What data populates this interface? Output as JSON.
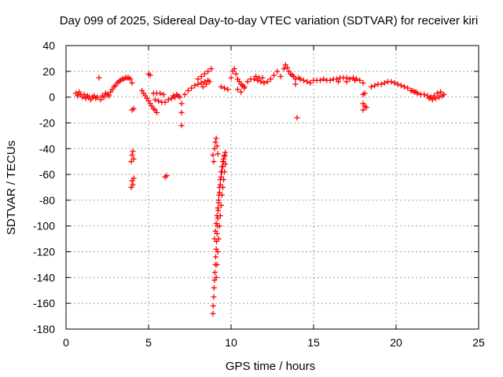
{
  "chart_data": {
    "type": "scatter",
    "title": "Day 099 of 2025, Sidereal Day-to-day VTEC variation (SDTVAR) for receiver kiri",
    "xlabel": "GPS time / hours",
    "ylabel": "SDTVAR / TECUs",
    "xlim": [
      0,
      25
    ],
    "ylim": [
      -180,
      40
    ],
    "xticks": [
      0,
      5,
      10,
      15,
      20,
      25
    ],
    "yticks": [
      -180,
      -160,
      -140,
      -120,
      -100,
      -80,
      -60,
      -40,
      -20,
      0,
      20,
      40
    ],
    "grid": true,
    "marker": "+",
    "color": "#ff0000",
    "series": [
      {
        "points": [
          [
            0.6,
            3
          ],
          [
            0.7,
            1
          ],
          [
            0.8,
            4
          ],
          [
            0.9,
            2
          ],
          [
            1.0,
            0
          ],
          [
            1.1,
            2
          ],
          [
            1.2,
            -1
          ],
          [
            1.3,
            1
          ],
          [
            1.4,
            0
          ],
          [
            1.5,
            -2
          ],
          [
            1.6,
            0
          ],
          [
            1.7,
            1
          ],
          [
            1.8,
            -1
          ],
          [
            1.9,
            0
          ],
          [
            2.0,
            15
          ],
          [
            2.1,
            -2
          ],
          [
            2.2,
            1
          ],
          [
            2.3,
            0
          ],
          [
            2.4,
            3
          ],
          [
            2.5,
            2
          ],
          [
            2.6,
            1
          ],
          [
            2.7,
            4
          ],
          [
            2.8,
            6
          ],
          [
            2.9,
            8
          ],
          [
            3.0,
            9
          ],
          [
            3.1,
            11
          ],
          [
            3.2,
            12
          ],
          [
            3.3,
            13
          ],
          [
            3.4,
            14
          ],
          [
            3.5,
            14
          ],
          [
            3.6,
            15
          ],
          [
            3.7,
            15
          ],
          [
            3.8,
            15
          ],
          [
            3.9,
            14
          ],
          [
            4.0,
            11
          ],
          [
            4.0,
            -10
          ],
          [
            4.1,
            -9
          ],
          [
            4.0,
            -45
          ],
          [
            3.95,
            -50
          ],
          [
            4.05,
            -42
          ],
          [
            4.1,
            -48
          ],
          [
            4.0,
            -65
          ],
          [
            3.95,
            -70
          ],
          [
            4.05,
            -68
          ],
          [
            4.1,
            -63
          ],
          [
            4.6,
            5
          ],
          [
            4.7,
            3
          ],
          [
            4.8,
            1
          ],
          [
            4.9,
            -1
          ],
          [
            5.0,
            -3
          ],
          [
            5.1,
            -5
          ],
          [
            5.2,
            -7
          ],
          [
            5.3,
            -9
          ],
          [
            5.4,
            -10
          ],
          [
            5.5,
            -12
          ],
          [
            5.0,
            18
          ],
          [
            5.1,
            17
          ],
          [
            5.3,
            3
          ],
          [
            5.5,
            3
          ],
          [
            5.7,
            3
          ],
          [
            5.9,
            2
          ],
          [
            5.4,
            -2
          ],
          [
            5.6,
            -3
          ],
          [
            5.8,
            -4
          ],
          [
            6.0,
            -4
          ],
          [
            6.2,
            -2
          ],
          [
            6.4,
            -1
          ],
          [
            6.6,
            0
          ],
          [
            6.8,
            1
          ],
          [
            6.0,
            -62
          ],
          [
            6.1,
            -61
          ],
          [
            6.5,
            1
          ],
          [
            6.7,
            2
          ],
          [
            6.9,
            0
          ],
          [
            7.0,
            -5
          ],
          [
            7.0,
            -12
          ],
          [
            7.0,
            -22
          ],
          [
            7.2,
            2
          ],
          [
            7.4,
            5
          ],
          [
            7.6,
            7
          ],
          [
            7.8,
            9
          ],
          [
            8.0,
            10
          ],
          [
            8.2,
            11
          ],
          [
            8.4,
            12
          ],
          [
            8.6,
            13
          ],
          [
            8.0,
            14
          ],
          [
            8.2,
            16
          ],
          [
            8.4,
            18
          ],
          [
            8.6,
            20
          ],
          [
            8.8,
            22
          ],
          [
            8.3,
            8
          ],
          [
            8.5,
            10
          ],
          [
            8.7,
            12
          ],
          [
            8.9,
            -45
          ],
          [
            8.95,
            -50
          ],
          [
            9.0,
            -40
          ],
          [
            9.05,
            -35
          ],
          [
            9.1,
            -32
          ],
          [
            9.15,
            -38
          ],
          [
            9.2,
            -44
          ],
          [
            8.9,
            -168
          ],
          [
            8.92,
            -162
          ],
          [
            8.95,
            -155
          ],
          [
            8.97,
            -148
          ],
          [
            9.0,
            -142
          ],
          [
            9.02,
            -136
          ],
          [
            9.05,
            -130
          ],
          [
            9.07,
            -124
          ],
          [
            9.1,
            -118
          ],
          [
            9.12,
            -112
          ],
          [
            9.15,
            -106
          ],
          [
            9.17,
            -100
          ],
          [
            9.2,
            -94
          ],
          [
            9.22,
            -88
          ],
          [
            9.25,
            -82
          ],
          [
            9.27,
            -76
          ],
          [
            9.3,
            -70
          ],
          [
            9.35,
            -64
          ],
          [
            9.4,
            -58
          ],
          [
            9.45,
            -54
          ],
          [
            9.5,
            -50
          ],
          [
            9.55,
            -48
          ],
          [
            9.6,
            -45
          ],
          [
            9.0,
            -110
          ],
          [
            9.05,
            -104
          ],
          [
            9.1,
            -98
          ],
          [
            9.15,
            -92
          ],
          [
            9.2,
            -86
          ],
          [
            9.25,
            -80
          ],
          [
            9.3,
            -74
          ],
          [
            9.35,
            -68
          ],
          [
            9.4,
            -62
          ],
          [
            9.45,
            -58
          ],
          [
            9.5,
            -54
          ],
          [
            9.55,
            -50
          ],
          [
            9.6,
            -46
          ],
          [
            9.65,
            -43
          ],
          [
            9.1,
            -140
          ],
          [
            9.15,
            -130
          ],
          [
            9.2,
            -120
          ],
          [
            9.25,
            -110
          ],
          [
            9.3,
            -100
          ],
          [
            9.35,
            -92
          ],
          [
            9.4,
            -84
          ],
          [
            9.45,
            -76
          ],
          [
            9.5,
            -70
          ],
          [
            9.55,
            -64
          ],
          [
            9.6,
            -58
          ],
          [
            9.65,
            -52
          ],
          [
            9.4,
            8
          ],
          [
            9.6,
            7
          ],
          [
            9.8,
            6
          ],
          [
            10.0,
            15
          ],
          [
            10.1,
            20
          ],
          [
            10.2,
            22
          ],
          [
            10.3,
            18
          ],
          [
            10.4,
            14
          ],
          [
            10.5,
            12
          ],
          [
            10.6,
            10
          ],
          [
            10.7,
            9
          ],
          [
            10.8,
            7
          ],
          [
            10.4,
            6
          ],
          [
            10.6,
            4
          ],
          [
            10.8,
            8
          ],
          [
            11.0,
            12
          ],
          [
            11.2,
            14
          ],
          [
            11.4,
            14
          ],
          [
            11.6,
            13
          ],
          [
            11.8,
            12
          ],
          [
            12.0,
            11
          ],
          [
            12.2,
            12
          ],
          [
            12.4,
            14
          ],
          [
            12.6,
            17
          ],
          [
            12.8,
            20
          ],
          [
            13.0,
            16
          ],
          [
            11.5,
            16
          ],
          [
            11.7,
            15
          ],
          [
            11.9,
            15
          ],
          [
            13.2,
            22
          ],
          [
            13.3,
            25
          ],
          [
            13.4,
            23
          ],
          [
            13.5,
            20
          ],
          [
            13.6,
            18
          ],
          [
            13.7,
            17
          ],
          [
            13.8,
            16
          ],
          [
            13.9,
            14
          ],
          [
            14.0,
            -16
          ],
          [
            14.1,
            15
          ],
          [
            14.2,
            14
          ],
          [
            14.4,
            13
          ],
          [
            14.6,
            12
          ],
          [
            14.8,
            11
          ],
          [
            13.9,
            10
          ],
          [
            15.0,
            13
          ],
          [
            15.2,
            13
          ],
          [
            15.4,
            13
          ],
          [
            15.6,
            14
          ],
          [
            15.8,
            13
          ],
          [
            16.0,
            13
          ],
          [
            16.2,
            14
          ],
          [
            16.4,
            14
          ],
          [
            16.6,
            15
          ],
          [
            16.8,
            15
          ],
          [
            17.0,
            15
          ],
          [
            17.2,
            14
          ],
          [
            17.4,
            15
          ],
          [
            17.6,
            14
          ],
          [
            17.8,
            13
          ],
          [
            18.0,
            11
          ],
          [
            16.5,
            12
          ],
          [
            17.0,
            12
          ],
          [
            17.5,
            13
          ],
          [
            18.0,
            2
          ],
          [
            18.1,
            3
          ],
          [
            18.0,
            -5
          ],
          [
            18.1,
            -7
          ],
          [
            18.0,
            -10
          ],
          [
            18.2,
            -8
          ],
          [
            18.5,
            8
          ],
          [
            18.7,
            9
          ],
          [
            18.9,
            10
          ],
          [
            19.1,
            10
          ],
          [
            19.3,
            11
          ],
          [
            19.5,
            12
          ],
          [
            19.7,
            12
          ],
          [
            19.9,
            11
          ],
          [
            20.1,
            10
          ],
          [
            20.3,
            9
          ],
          [
            20.5,
            8
          ],
          [
            20.7,
            7
          ],
          [
            20.9,
            5
          ],
          [
            21.1,
            4
          ],
          [
            21.3,
            3
          ],
          [
            21.5,
            2
          ],
          [
            21.0,
            5
          ],
          [
            21.2,
            4
          ],
          [
            21.7,
            2
          ],
          [
            21.9,
            1
          ],
          [
            22.1,
            0
          ],
          [
            22.3,
            1
          ],
          [
            22.5,
            3
          ],
          [
            22.7,
            4
          ],
          [
            22.9,
            2
          ],
          [
            22.0,
            -1
          ],
          [
            22.2,
            -2
          ],
          [
            22.4,
            -1
          ],
          [
            22.6,
            0
          ],
          [
            22.8,
            1
          ]
        ]
      }
    ]
  }
}
